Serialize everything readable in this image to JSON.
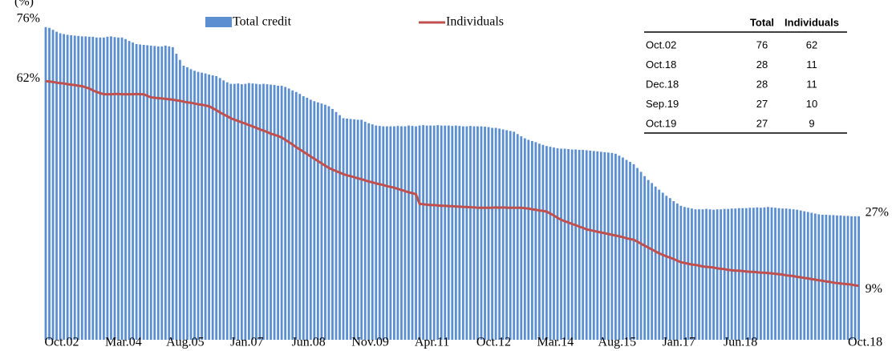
{
  "chart_data": {
    "type": "bar_line",
    "unit_label": "(%)",
    "categories": [
      "Oct.02",
      null,
      null,
      null,
      null,
      null,
      null,
      null,
      null,
      null,
      null,
      null,
      null,
      null,
      null,
      null,
      null,
      "Mar.04",
      null,
      null,
      null,
      null,
      null,
      null,
      null,
      null,
      null,
      null,
      null,
      null,
      null,
      null,
      null,
      null,
      "Aug.05",
      null,
      null,
      null,
      null,
      null,
      null,
      null,
      null,
      null,
      null,
      null,
      null,
      null,
      null,
      null,
      null,
      "Jan.07",
      null,
      null,
      null,
      null,
      null,
      null,
      null,
      null,
      null,
      null,
      null,
      null,
      null,
      null,
      null,
      null,
      "Jun.08",
      null,
      null,
      null,
      null,
      null,
      null,
      null,
      null,
      null,
      null,
      null,
      null,
      null,
      null,
      null,
      null,
      "Nov.09",
      null,
      null,
      null,
      null,
      null,
      null,
      null,
      null,
      null,
      null,
      null,
      null,
      null,
      null,
      null,
      null,
      "Apr.11",
      null,
      null,
      null,
      null,
      null,
      null,
      null,
      null,
      null,
      null,
      null,
      null,
      null,
      null,
      null,
      null,
      "Oct.12",
      null,
      null,
      null,
      null,
      null,
      null,
      null,
      null,
      null,
      null,
      null,
      null,
      null,
      null,
      null,
      null,
      "Mar.14",
      null,
      null,
      null,
      null,
      null,
      null,
      null,
      null,
      null,
      null,
      null,
      null,
      null,
      null,
      null,
      null,
      "Aug.15",
      null,
      null,
      null,
      null,
      null,
      null,
      null,
      null,
      null,
      null,
      null,
      null,
      null,
      null,
      null,
      null,
      "Jan.17",
      null,
      null,
      null,
      null,
      null,
      null,
      null,
      null,
      null,
      null,
      null,
      null,
      null,
      null,
      null,
      null,
      "Jun.18",
      null,
      null,
      null,
      null,
      null,
      null,
      null,
      null,
      null,
      null,
      null,
      null,
      null,
      null,
      null,
      null,
      null,
      null,
      null,
      null,
      null,
      null,
      null,
      null,
      null,
      null,
      null,
      null,
      null,
      null,
      null,
      null,
      null,
      null,
      null,
      null,
      "Oct.18"
    ],
    "series": [
      {
        "name": "Total credit",
        "color": "#5b8fd2",
        "kind": "bar",
        "first_label": "76%",
        "last_label": "27%",
        "values": [
          76,
          75.8,
          75.3,
          74.8,
          74.4,
          74.2,
          74,
          73.9,
          73.8,
          73.7,
          73.6,
          73.6,
          73.5,
          73.5,
          73.3,
          73.3,
          73.3,
          73.5,
          73.6,
          73.4,
          73.3,
          73.3,
          72.9,
          72.4,
          72,
          71.6,
          71.5,
          71.4,
          71.3,
          71.2,
          71.1,
          71,
          71,
          71.2,
          71,
          70.8,
          69.1,
          67.5,
          66,
          65.6,
          65.1,
          64.7,
          64.4,
          64.2,
          64,
          63.7,
          63.5,
          63.3,
          62.8,
          62.2,
          61.7,
          61.3,
          61.3,
          61.4,
          61.2,
          61.3,
          61.5,
          61.4,
          61.3,
          61.2,
          61.3,
          61.2,
          61.1,
          61,
          60.8,
          60.8,
          60.5,
          60.1,
          59.6,
          59.2,
          58.7,
          58.1,
          57.7,
          57.2,
          56.8,
          56.5,
          56.2,
          55.9,
          55.5,
          54.8,
          54,
          53.2,
          52.4,
          52.3,
          52.2,
          52.1,
          52,
          52,
          51.5,
          51.1,
          50.8,
          50.5,
          50.4,
          50.3,
          50.3,
          50.3,
          50.3,
          50.4,
          50.3,
          50.3,
          50.5,
          50.4,
          50.3,
          50.5,
          50.6,
          50.5,
          50.5,
          50.5,
          50.6,
          50.5,
          50.5,
          50.5,
          50.4,
          50.5,
          50.4,
          50.3,
          50.3,
          50.4,
          50.3,
          50.3,
          50.3,
          50.2,
          50.1,
          49.9,
          49.9,
          49.7,
          49.5,
          49.3,
          49.1,
          48.9,
          48.3,
          47.7,
          47.2,
          46.8,
          46.5,
          46.2,
          45.8,
          45.5,
          45.2,
          45,
          44.8,
          44.6,
          44.5,
          44.5,
          44.4,
          44.3,
          44.3,
          44.2,
          44.2,
          44.1,
          44,
          43.9,
          43.8,
          43.7,
          43.6,
          43.5,
          43.4,
          43.2,
          42.7,
          42.2,
          41.6,
          41.1,
          40.5,
          39.5,
          38.5,
          37.4,
          36.4,
          35.6,
          34.7,
          33.9,
          33.1,
          32.3,
          31.7,
          30.9,
          30.3,
          29.7,
          29.4,
          29.2,
          29,
          28.8,
          28.8,
          28.8,
          28.9,
          28.8,
          28.7,
          28.8,
          28.8,
          28.9,
          28.9,
          29,
          29,
          29.1,
          29.1,
          29.1,
          29.2,
          29.2,
          29.3,
          29.2,
          29.3,
          29.4,
          29.3,
          29.2,
          29.1,
          29,
          29,
          28.9,
          28.8,
          28.7,
          28.5,
          28.3,
          28.1,
          27.9,
          27.7,
          27.5,
          27.4,
          27.4,
          27.3,
          27.3,
          27.2,
          27.2,
          27.1,
          27.1,
          27,
          27,
          27
        ]
      },
      {
        "name": "Individuals",
        "color": "#c0504d",
        "kind": "line",
        "first_label": "62%",
        "last_label": "9%",
        "values": [
          62,
          61.9,
          61.8,
          61.6,
          61.5,
          61.4,
          61.2,
          61.1,
          61,
          60.8,
          60.7,
          60.4,
          60.1,
          59.6,
          59.2,
          58.9,
          58.6,
          58.6,
          58.6,
          58.7,
          58.7,
          58.6,
          58.6,
          58.6,
          58.6,
          58.7,
          58.6,
          58.6,
          58.2,
          57.8,
          57.7,
          57.6,
          57.5,
          57.4,
          57.3,
          57.2,
          57,
          56.9,
          56.7,
          56.5,
          56.4,
          56.2,
          56,
          55.9,
          55.7,
          55.5,
          55,
          54.5,
          53.9,
          53.4,
          52.9,
          52.4,
          52,
          51.7,
          51.3,
          51,
          50.6,
          50.3,
          49.9,
          49.5,
          49.2,
          48.8,
          48.4,
          48.1,
          47.8,
          47.4,
          46.8,
          46.2,
          45.6,
          44.9,
          44.3,
          43.7,
          43.1,
          42.5,
          41.9,
          41.3,
          40.7,
          40.1,
          39.5,
          39.1,
          38.7,
          38.3,
          37.9,
          37.6,
          37.4,
          37.1,
          36.8,
          36.6,
          36.3,
          36,
          35.8,
          35.5,
          35.3,
          35.1,
          34.8,
          34.6,
          34.4,
          34.1,
          33.8,
          33.5,
          33.2,
          33,
          32.7,
          30.2,
          30.1,
          30,
          29.9,
          29.9,
          29.8,
          29.7,
          29.7,
          29.6,
          29.6,
          29.5,
          29.5,
          29.4,
          29.4,
          29.3,
          29.3,
          29.2,
          29.2,
          29.2,
          29.2,
          29.2,
          29.3,
          29.2,
          29.3,
          29.2,
          29.2,
          29.2,
          29.2,
          29.2,
          29.1,
          29,
          28.8,
          28.7,
          28.5,
          28.4,
          28.2,
          27.7,
          27.2,
          26.6,
          26.1,
          25.7,
          25.4,
          25,
          24.7,
          24.3,
          24,
          23.6,
          23.4,
          23.2,
          23,
          22.8,
          22.6,
          22.4,
          22.2,
          22,
          21.8,
          21.6,
          21.3,
          21.1,
          20.9,
          20.4,
          19.9,
          19.4,
          18.9,
          18.4,
          17.9,
          17.4,
          17,
          16.6,
          16.3,
          15.9,
          15.5,
          15.1,
          14.9,
          14.7,
          14.5,
          14.4,
          14.2,
          14,
          13.9,
          13.8,
          13.7,
          13.5,
          13.4,
          13.3,
          13.1,
          13,
          12.9,
          12.9,
          12.8,
          12.7,
          12.6,
          12.6,
          12.5,
          12.4,
          12.4,
          12.3,
          12.2,
          12.1,
          12,
          11.9,
          11.7,
          11.6,
          11.5,
          11.3,
          11.2,
          11,
          10.9,
          10.7,
          10.6,
          10.4,
          10.3,
          10.1,
          10,
          9.8,
          9.7,
          9.6,
          9.5,
          9.4,
          9.3,
          9.1,
          9
        ]
      }
    ],
    "ylim": [
      -5,
      77
    ],
    "table": {
      "header": [
        "Total",
        "Individuals"
      ],
      "rows": [
        [
          "Oct.02",
          76,
          62
        ],
        [
          "Oct.18",
          28,
          11
        ],
        [
          "Dec.18",
          28,
          11
        ],
        [
          "Sep.19",
          27,
          10
        ],
        [
          "Oct.19",
          27,
          9
        ]
      ]
    }
  }
}
